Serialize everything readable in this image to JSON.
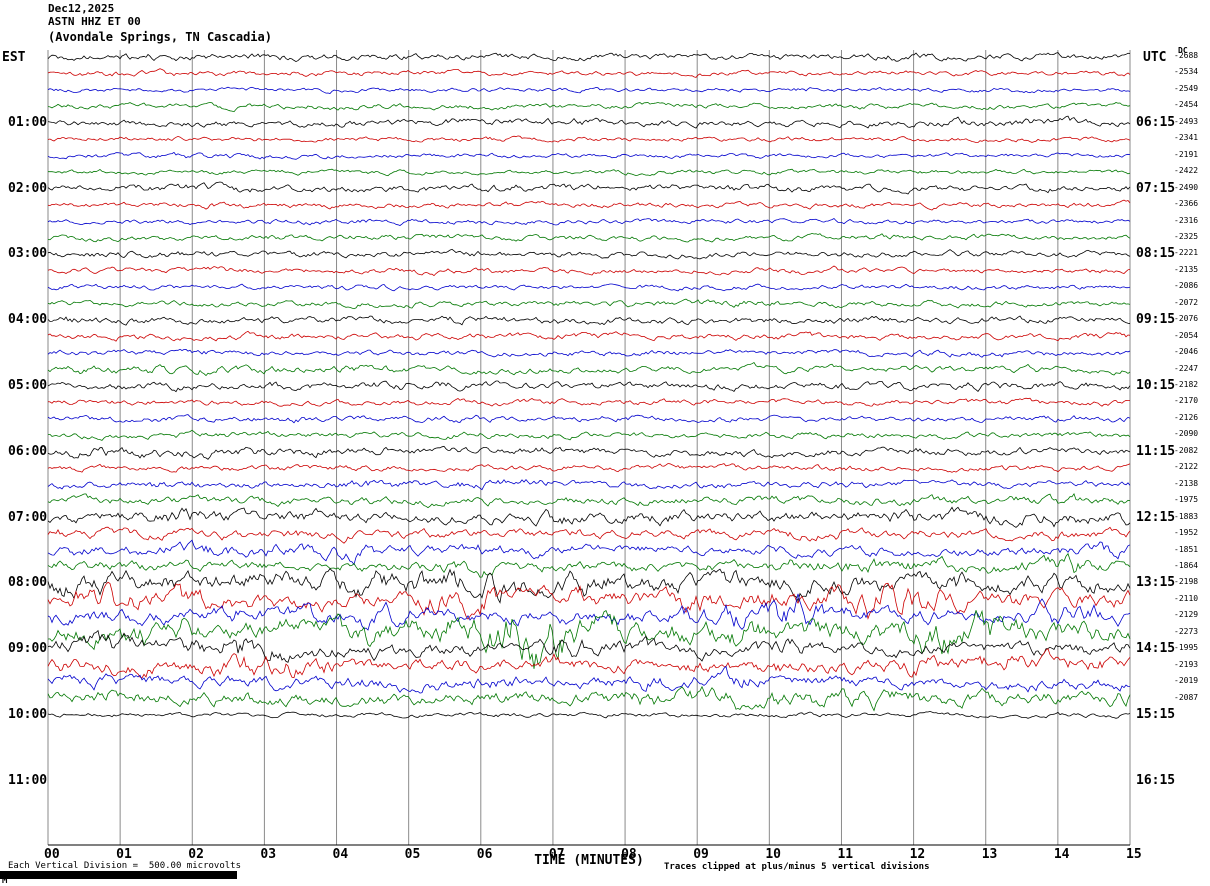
{
  "title": {
    "date": "Dec12,2025",
    "station": "ASTN HHZ ET 00",
    "location": "(Avondale Springs, TN Cascadia)"
  },
  "axes": {
    "left_header": "EST",
    "right_header": "UTC",
    "dc_header": "DC"
  },
  "footer": {
    "scale_note": "Each Vertical Division =  500.00 microvolts",
    "clip_note": "Traces clipped at plus/minus 5 vertical divisions",
    "logo": "M"
  },
  "chart_data": {
    "type": "line",
    "subtype": "helicorder-seismogram",
    "x_axis": {
      "label": "TIME (MINUTES)",
      "ticks": [
        "00",
        "01",
        "02",
        "03",
        "04",
        "05",
        "06",
        "07",
        "08",
        "09",
        "10",
        "11",
        "12",
        "13",
        "14",
        "15"
      ],
      "minutes_per_row": 15
    },
    "rows_per_hour": 4,
    "left_time_labels": [
      "01:00",
      "02:00",
      "03:00",
      "04:00",
      "05:00",
      "06:00",
      "07:00",
      "08:00",
      "09:00",
      "10:00",
      "11:00"
    ],
    "right_time_labels": [
      "06:15",
      "07:15",
      "08:15",
      "09:15",
      "10:15",
      "11:15",
      "12:15",
      "13:15",
      "14:15",
      "15:15",
      "16:15"
    ],
    "trace_color_cycle": [
      "#000000",
      "#cc0000",
      "#0000cc",
      "#007700"
    ],
    "traces": [
      {
        "dc": -2688,
        "amp": 2.2,
        "burst": 0.3,
        "lf": 0.4
      },
      {
        "dc": -2534,
        "amp": 1.7,
        "burst": 0.2,
        "lf": 0.3
      },
      {
        "dc": -2549,
        "amp": 1.5,
        "burst": 0.2,
        "lf": 0.3
      },
      {
        "dc": -2454,
        "amp": 1.8,
        "burst": 0.3,
        "lf": 0.5
      },
      {
        "dc": -2493,
        "amp": 2.2,
        "burst": 0.4,
        "lf": 0.6
      },
      {
        "dc": -2341,
        "amp": 1.6,
        "burst": 0.2,
        "lf": 0.3
      },
      {
        "dc": -2191,
        "amp": 1.5,
        "burst": 0.3,
        "lf": 0.5
      },
      {
        "dc": -2422,
        "amp": 1.6,
        "burst": 0.2,
        "lf": 0.3
      },
      {
        "dc": -2490,
        "amp": 2.2,
        "burst": 0.4,
        "lf": 0.5
      },
      {
        "dc": -2366,
        "amp": 1.8,
        "burst": 0.3,
        "lf": 0.3
      },
      {
        "dc": -2316,
        "amp": 1.6,
        "burst": 0.2,
        "lf": 0.3
      },
      {
        "dc": -2325,
        "amp": 1.8,
        "burst": 0.3,
        "lf": 0.3
      },
      {
        "dc": -2221,
        "amp": 2.0,
        "burst": 0.3,
        "lf": 0.4
      },
      {
        "dc": -2135,
        "amp": 1.8,
        "burst": 0.3,
        "lf": 0.3
      },
      {
        "dc": -2086,
        "amp": 1.6,
        "burst": 0.2,
        "lf": 0.3
      },
      {
        "dc": -2072,
        "amp": 1.8,
        "burst": 0.3,
        "lf": 0.3
      },
      {
        "dc": -2076,
        "amp": 2.4,
        "burst": 0.4,
        "lf": 0.4
      },
      {
        "dc": -2054,
        "amp": 2.0,
        "burst": 0.3,
        "lf": 0.3
      },
      {
        "dc": -2046,
        "amp": 2.0,
        "burst": 0.3,
        "lf": 0.4
      },
      {
        "dc": -2247,
        "amp": 2.2,
        "burst": 0.4,
        "lf": 0.4
      },
      {
        "dc": -2182,
        "amp": 2.6,
        "burst": 0.5,
        "lf": 0.5
      },
      {
        "dc": -2170,
        "amp": 2.0,
        "burst": 0.3,
        "lf": 0.3
      },
      {
        "dc": -2126,
        "amp": 1.9,
        "burst": 0.3,
        "lf": 0.3
      },
      {
        "dc": -2090,
        "amp": 2.0,
        "burst": 0.3,
        "lf": 0.4
      },
      {
        "dc": -2082,
        "amp": 2.4,
        "burst": 0.5,
        "lf": 0.8
      },
      {
        "dc": -2122,
        "amp": 2.0,
        "burst": 0.3,
        "lf": 0.4
      },
      {
        "dc": -2138,
        "amp": 2.4,
        "burst": 0.4,
        "lf": 0.5
      },
      {
        "dc": -1975,
        "amp": 2.8,
        "burst": 0.5,
        "lf": 0.5
      },
      {
        "dc": -1883,
        "amp": 3.6,
        "burst": 0.7,
        "lf": 0.8
      },
      {
        "dc": -1952,
        "amp": 3.0,
        "burst": 0.6,
        "lf": 0.8
      },
      {
        "dc": -1851,
        "amp": 3.2,
        "burst": 0.7,
        "lf": 0.8
      },
      {
        "dc": -1864,
        "amp": 3.6,
        "burst": 0.8,
        "lf": 0.8
      },
      {
        "dc": -2198,
        "amp": 6.5,
        "burst": 1.0,
        "lf": 1.0
      },
      {
        "dc": -2110,
        "amp": 5.5,
        "burst": 1.0,
        "lf": 1.2
      },
      {
        "dc": -2129,
        "amp": 5.0,
        "burst": 1.0,
        "lf": 1.0
      },
      {
        "dc": -2273,
        "amp": 7.0,
        "burst": 1.2,
        "lf": 1.0
      },
      {
        "dc": -1995,
        "amp": 4.5,
        "burst": 0.8,
        "lf": 3.5
      },
      {
        "dc": -2193,
        "amp": 4.5,
        "burst": 0.8,
        "lf": 4.0
      },
      {
        "dc": -2019,
        "amp": 3.8,
        "burst": 0.8,
        "lf": 2.0
      },
      {
        "dc": -2087,
        "amp": 4.2,
        "burst": 0.9,
        "lf": 1.5
      },
      {
        "dc": null,
        "amp": 1.5,
        "burst": 0.2,
        "lf": 0.3
      }
    ]
  }
}
